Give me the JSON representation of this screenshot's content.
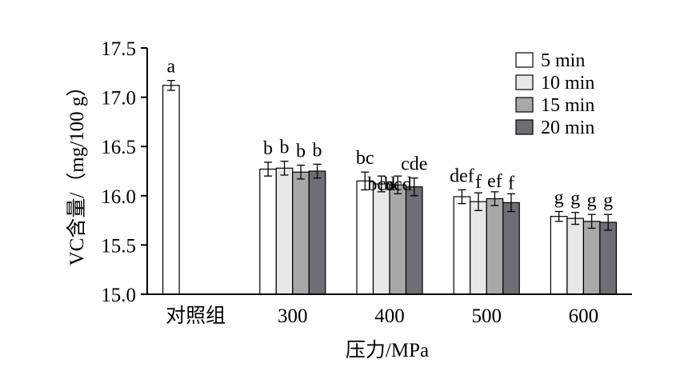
{
  "chart_data": {
    "type": "bar",
    "xlabel": "压力/MPa",
    "ylabel": "VC含量/（mg/100 g）",
    "ylim": [
      15.0,
      17.5
    ],
    "yticks": [
      "15.0",
      "15.5",
      "16.0",
      "16.5",
      "17.0",
      "17.5"
    ],
    "categories": [
      "对照组",
      "300",
      "400",
      "500",
      "600"
    ],
    "legend_position": "top-right",
    "colors": [
      "#ffffff",
      "#e8e8e8",
      "#a8a8a8",
      "#6d6f74"
    ],
    "series": [
      {
        "name": "5 min",
        "values": [
          17.12,
          16.27,
          16.15,
          15.99,
          15.79
        ],
        "errors": [
          0.05,
          0.07,
          0.09,
          0.07,
          0.05
        ],
        "labels": [
          "a",
          "b",
          "bc",
          "def",
          "g"
        ]
      },
      {
        "name": "10 min",
        "values": [
          null,
          16.28,
          16.12,
          15.94,
          15.77
        ],
        "errors": [
          null,
          0.07,
          0.08,
          0.09,
          0.06
        ],
        "labels": [
          "",
          "b",
          "bcd",
          "f",
          "g"
        ]
      },
      {
        "name": "15 min",
        "values": [
          null,
          16.24,
          16.11,
          15.97,
          15.74
        ],
        "errors": [
          null,
          0.07,
          0.09,
          0.07,
          0.07
        ],
        "labels": [
          "",
          "b",
          "bcd",
          "ef",
          "g"
        ]
      },
      {
        "name": "20 min",
        "values": [
          null,
          16.25,
          16.09,
          15.93,
          15.73
        ],
        "errors": [
          null,
          0.07,
          0.09,
          0.09,
          0.08
        ],
        "labels": [
          "",
          "b",
          "cde",
          "f",
          "g"
        ]
      }
    ]
  }
}
